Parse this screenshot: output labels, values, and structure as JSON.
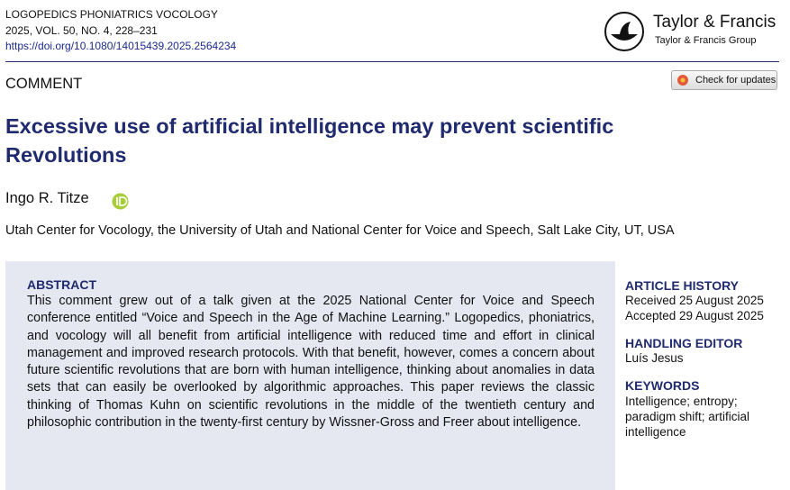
{
  "header": {
    "journal": "LOGOPEDICS PHONIATRICS VOCOLOGY",
    "issue": "2025, VOL. 50, NO. 4, 228–231",
    "doi": "https://doi.org/10.1080/14015439.2025.2564234",
    "publisher": "Taylor & Francis",
    "publisher_group": "Taylor & Francis Group"
  },
  "article_type": "COMMENT",
  "updates_button": "Check for updates",
  "title": "Excessive use of artificial intelligence may prevent scientific Revolutions",
  "author": "Ingo R. Titze",
  "affiliation": "Utah Center for Vocology, the University of Utah and National Center for Voice and Speech, Salt Lake City, UT, USA",
  "abstract": {
    "heading": "ABSTRACT",
    "text": "This comment grew out of a talk given at the 2025 National Center for Voice and Speech conference entitled “Voice and Speech in the Age of Machine Learning.” Logopedics, phoniatrics, and vocology will all benefit from artificial intelligence with reduced time and effort in clinical management and improved research protocols. With that benefit, however, comes a concern about future scientific revolutions that are born with human intelligence, thinking about anomalies in data sets that can easily be overlooked by algorithmic approaches. This paper reviews the classic thinking of Thomas Kuhn on scientific revolutions in the middle of the twentieth century and philosophic contribution in the twenty-first century by Wissner-Gross and Freer about intelligence."
  },
  "sidebar": {
    "history": {
      "heading": "ARTICLE HISTORY",
      "received": "Received 25 August 2025",
      "accepted": "Accepted 29 August 2025"
    },
    "editor": {
      "heading": "HANDLING EDITOR",
      "name": "Luís Jesus"
    },
    "keywords": {
      "heading": "KEYWORDS",
      "text": "Intelligence; entropy; paradigm shift; artificial intelligence"
    }
  }
}
